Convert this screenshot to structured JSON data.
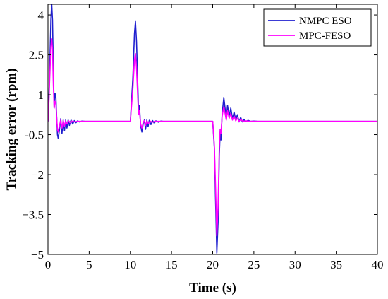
{
  "chart_data": {
    "type": "line",
    "title": "",
    "xlabel": "Time (s)",
    "ylabel": "Tracking error (rpm)",
    "xlim": [
      0,
      40
    ],
    "ylim": [
      -5,
      4.4
    ],
    "xticks": [
      0,
      5,
      10,
      15,
      20,
      25,
      30,
      35,
      40
    ],
    "yticks": [
      -5,
      -3.5,
      -2,
      -0.5,
      1,
      2.5,
      4
    ],
    "xtick_labels": [
      "0",
      "5",
      "10",
      "15",
      "20",
      "25",
      "30",
      "35",
      "40"
    ],
    "ytick_labels": [
      "−5",
      "−3.5",
      "−2",
      "-0.5",
      "1",
      "2.5",
      "4"
    ],
    "grid": false,
    "legend_position": "top-right",
    "baseline": 0,
    "series": [
      {
        "name": "NMPC ESO",
        "color": "#1f1fcf",
        "points": [
          [
            0,
            0
          ],
          [
            0.05,
            0.2
          ],
          [
            0.2,
            1.8
          ],
          [
            0.35,
            3.8
          ],
          [
            0.45,
            4.45
          ],
          [
            0.55,
            3.8
          ],
          [
            0.65,
            2.0
          ],
          [
            0.75,
            0.5
          ],
          [
            0.85,
            1.05
          ],
          [
            0.95,
            1.0
          ],
          [
            1.05,
            0.2
          ],
          [
            1.15,
            -0.5
          ],
          [
            1.25,
            -0.65
          ],
          [
            1.4,
            -0.3
          ],
          [
            1.55,
            0.1
          ],
          [
            1.7,
            -0.45
          ],
          [
            1.85,
            0.05
          ],
          [
            2.0,
            -0.35
          ],
          [
            2.15,
            0.05
          ],
          [
            2.3,
            -0.25
          ],
          [
            2.45,
            0.05
          ],
          [
            2.6,
            -0.15
          ],
          [
            2.8,
            0.05
          ],
          [
            3.0,
            -0.1
          ],
          [
            3.2,
            0.03
          ],
          [
            3.4,
            -0.05
          ],
          [
            3.6,
            0.02
          ],
          [
            3.8,
            -0.02
          ],
          [
            4.1,
            0.01
          ],
          [
            4.5,
            0
          ],
          [
            10.0,
            0
          ],
          [
            10.3,
            1.6
          ],
          [
            10.5,
            3.3
          ],
          [
            10.62,
            3.75
          ],
          [
            10.75,
            3.0
          ],
          [
            10.9,
            1.4
          ],
          [
            11.0,
            0.3
          ],
          [
            11.1,
            0.6
          ],
          [
            11.25,
            -0.15
          ],
          [
            11.4,
            -0.4
          ],
          [
            11.55,
            -0.1
          ],
          [
            11.7,
            0.05
          ],
          [
            11.85,
            -0.3
          ],
          [
            12.0,
            0.05
          ],
          [
            12.15,
            -0.2
          ],
          [
            12.3,
            0.04
          ],
          [
            12.5,
            -0.12
          ],
          [
            12.7,
            0.03
          ],
          [
            12.9,
            -0.07
          ],
          [
            13.1,
            0.02
          ],
          [
            13.4,
            -0.03
          ],
          [
            13.7,
            0.01
          ],
          [
            14.0,
            0
          ],
          [
            20.0,
            0
          ],
          [
            20.2,
            -1.0
          ],
          [
            20.35,
            -3.0
          ],
          [
            20.5,
            -4.95
          ],
          [
            20.65,
            -3.8
          ],
          [
            20.8,
            -1.3
          ],
          [
            20.9,
            -0.45
          ],
          [
            21.0,
            -0.7
          ],
          [
            21.15,
            0.3
          ],
          [
            21.35,
            0.9
          ],
          [
            21.5,
            0.5
          ],
          [
            21.65,
            0.1
          ],
          [
            21.8,
            0.6
          ],
          [
            22.0,
            0.2
          ],
          [
            22.2,
            0.5
          ],
          [
            22.4,
            0.1
          ],
          [
            22.6,
            0.35
          ],
          [
            22.8,
            0.05
          ],
          [
            23.0,
            0.25
          ],
          [
            23.2,
            -0.02
          ],
          [
            23.4,
            0.15
          ],
          [
            23.6,
            -0.02
          ],
          [
            23.8,
            0.08
          ],
          [
            24.0,
            -0.01
          ],
          [
            24.3,
            0.04
          ],
          [
            24.6,
            0
          ],
          [
            25.0,
            0.01
          ],
          [
            25.5,
            0
          ],
          [
            40,
            0
          ]
        ]
      },
      {
        "name": "MPC-FESO",
        "color": "#ff00ff",
        "points": [
          [
            0,
            0
          ],
          [
            0.05,
            0.2
          ],
          [
            0.2,
            1.5
          ],
          [
            0.35,
            2.8
          ],
          [
            0.45,
            3.1
          ],
          [
            0.55,
            2.7
          ],
          [
            0.65,
            1.4
          ],
          [
            0.75,
            0.5
          ],
          [
            0.85,
            0.75
          ],
          [
            0.95,
            0.7
          ],
          [
            1.05,
            0.15
          ],
          [
            1.15,
            -0.3
          ],
          [
            1.25,
            -0.4
          ],
          [
            1.4,
            -0.15
          ],
          [
            1.55,
            0.05
          ],
          [
            1.7,
            -0.25
          ],
          [
            1.85,
            0.03
          ],
          [
            2.0,
            -0.18
          ],
          [
            2.15,
            0.02
          ],
          [
            2.3,
            -0.1
          ],
          [
            2.5,
            0.02
          ],
          [
            2.7,
            -0.05
          ],
          [
            2.9,
            0.01
          ],
          [
            3.2,
            -0.02
          ],
          [
            3.6,
            0
          ],
          [
            10.0,
            0
          ],
          [
            10.3,
            1.2
          ],
          [
            10.5,
            2.3
          ],
          [
            10.62,
            2.55
          ],
          [
            10.75,
            2.0
          ],
          [
            10.9,
            0.9
          ],
          [
            11.0,
            0.25
          ],
          [
            11.1,
            0.4
          ],
          [
            11.25,
            -0.1
          ],
          [
            11.4,
            -0.25
          ],
          [
            11.55,
            -0.05
          ],
          [
            11.7,
            0.03
          ],
          [
            11.85,
            -0.15
          ],
          [
            12.0,
            0.02
          ],
          [
            12.2,
            -0.08
          ],
          [
            12.4,
            0.01
          ],
          [
            12.7,
            -0.03
          ],
          [
            13.0,
            0
          ],
          [
            20.0,
            0
          ],
          [
            20.2,
            -0.9
          ],
          [
            20.35,
            -2.5
          ],
          [
            20.5,
            -4.3
          ],
          [
            20.65,
            -3.2
          ],
          [
            20.8,
            -1.0
          ],
          [
            20.9,
            -0.3
          ],
          [
            21.0,
            -0.45
          ],
          [
            21.15,
            0.2
          ],
          [
            21.35,
            0.55
          ],
          [
            21.5,
            0.3
          ],
          [
            21.65,
            0.05
          ],
          [
            21.8,
            0.4
          ],
          [
            22.0,
            0.12
          ],
          [
            22.2,
            0.3
          ],
          [
            22.4,
            0.05
          ],
          [
            22.6,
            0.2
          ],
          [
            22.8,
            0.02
          ],
          [
            23.0,
            0.12
          ],
          [
            23.2,
            0
          ],
          [
            23.4,
            0.07
          ],
          [
            23.7,
            0
          ],
          [
            24.0,
            0.02
          ],
          [
            24.5,
            0
          ],
          [
            40,
            0
          ]
        ]
      }
    ]
  }
}
